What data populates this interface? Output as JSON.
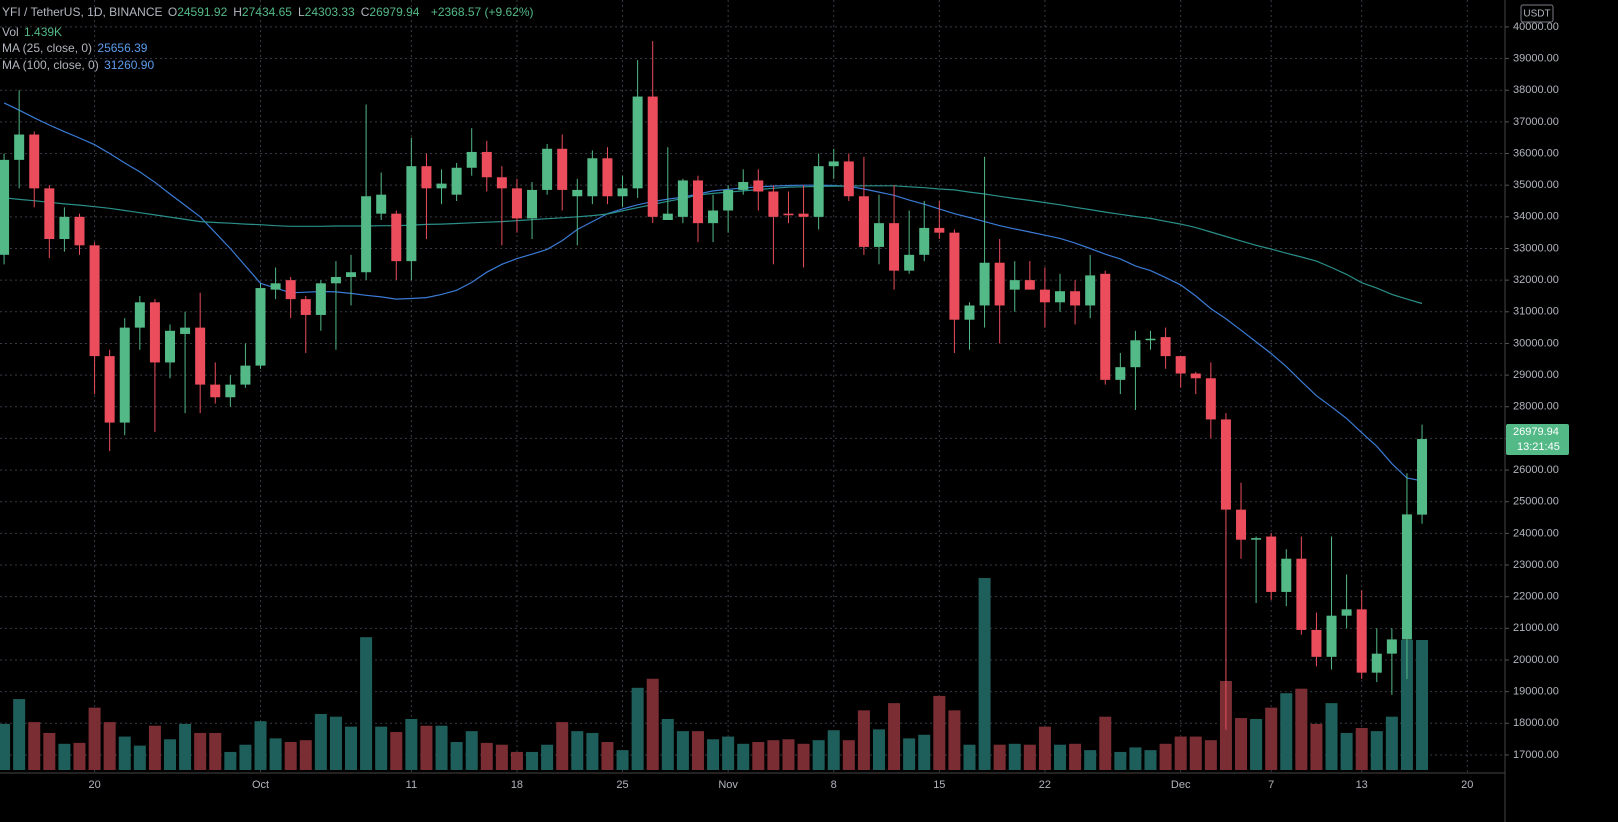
{
  "chart_data": {
    "type": "candlestick",
    "header": {
      "symbol": "YFI / TetherUS, 1D, BINANCE",
      "ohlc": [
        {
          "key": "O",
          "value": "24591.92"
        },
        {
          "key": "H",
          "value": "27434.65"
        },
        {
          "key": "L",
          "value": "24303.33"
        },
        {
          "key": "C",
          "value": "26979.94"
        }
      ],
      "change": "+2368.57 (+9.62%)",
      "vol_label": "Vol",
      "vol_value": "1.439K",
      "ma_values": [
        "25656.39",
        "31260.90"
      ]
    },
    "currency": "USDT",
    "countdown": "13:21:45",
    "up_color": "#53b987",
    "down_color": "#eb4d5c",
    "volume_up_color": "#1f5f5b",
    "volume_down_color": "#7a2e33",
    "grid": true,
    "xlim": [
      -0.27,
      99.5
    ],
    "xticks": [
      {
        "value": 6,
        "label": "20"
      },
      {
        "value": 17,
        "label": "Oct"
      },
      {
        "value": 27,
        "label": "11"
      },
      {
        "value": 34,
        "label": "18"
      },
      {
        "value": 41,
        "label": "25"
      },
      {
        "value": 48,
        "label": "Nov"
      },
      {
        "value": 55,
        "label": "8"
      },
      {
        "value": 62,
        "label": "15"
      },
      {
        "value": 69,
        "label": "22"
      },
      {
        "value": 78,
        "label": "Dec"
      },
      {
        "value": 84,
        "label": "7"
      },
      {
        "value": 90,
        "label": "13"
      },
      {
        "value": 97,
        "label": "20"
      }
    ],
    "ylim": [
      16430,
      40850
    ],
    "yticks": [
      {
        "value": 17000,
        "label": "17000.00"
      },
      {
        "value": 18000,
        "label": "18000.00"
      },
      {
        "value": 19000,
        "label": "19000.00"
      },
      {
        "value": 20000,
        "label": "20000.00"
      },
      {
        "value": 21000,
        "label": "21000.00"
      },
      {
        "value": 22000,
        "label": "22000.00"
      },
      {
        "value": 23000,
        "label": "23000.00"
      },
      {
        "value": 24000,
        "label": "24000.00"
      },
      {
        "value": 25000,
        "label": "25000.00"
      },
      {
        "value": 26000,
        "label": "26000.00"
      },
      {
        "value": 27000,
        "label": "27000.00"
      },
      {
        "value": 28000,
        "label": "28000.00"
      },
      {
        "value": 29000,
        "label": "29000.00"
      },
      {
        "value": 30000,
        "label": "30000.00"
      },
      {
        "value": 31000,
        "label": "31000.00"
      },
      {
        "value": 32000,
        "label": "32000.00"
      },
      {
        "value": 33000,
        "label": "33000.00"
      },
      {
        "value": 34000,
        "label": "34000.00"
      },
      {
        "value": 35000,
        "label": "35000.00"
      },
      {
        "value": 36000,
        "label": "36000.00"
      },
      {
        "value": 37000,
        "label": "37000.00"
      },
      {
        "value": 38000,
        "label": "38000.00"
      },
      {
        "value": 39000,
        "label": "39000.00"
      },
      {
        "value": 40000,
        "label": "40000.00"
      }
    ],
    "open": [
      32800,
      35800,
      36600,
      34900,
      33300,
      34000,
      33100,
      29600,
      27500,
      30500,
      31300,
      29400,
      30300,
      30500,
      28700,
      28300,
      28700,
      29300,
      31700,
      32000,
      31400,
      30900,
      31900,
      32100,
      32250,
      34100,
      34100,
      32600,
      35600,
      34900,
      34700,
      35550,
      36050,
      35250,
      34900,
      33950,
      34850,
      36150,
      34650,
      34650,
      35850,
      34650,
      34900,
      37800,
      33900,
      34000,
      35150,
      33800,
      34200,
      34850,
      35150,
      34800,
      34100,
      34100,
      34000,
      35600,
      35750,
      34650,
      33050,
      33800,
      32300,
      32800,
      33650,
      33500,
      30750,
      31200,
      32550,
      31700,
      32000,
      31700,
      31300,
      31650,
      31200,
      32200,
      28850,
      29250,
      30100,
      30200,
      29600,
      29050,
      28900,
      27600,
      24750,
      23800,
      23900,
      22150,
      23200,
      20950,
      20100,
      21400,
      21600,
      19600,
      20200,
      20650,
      24591.92
    ],
    "high": [
      36000,
      38000,
      36700,
      35000,
      34300,
      34100,
      33200,
      29800,
      30800,
      31500,
      31400,
      30600,
      31000,
      31600,
      29400,
      29000,
      30000,
      31900,
      32400,
      32100,
      31500,
      32000,
      32600,
      32800,
      37550,
      35400,
      34200,
      36500,
      36000,
      35500,
      35700,
      36800,
      36400,
      35600,
      35200,
      35100,
      36300,
      36600,
      35200,
      36100,
      36200,
      35300,
      38950,
      39550,
      36200,
      35200,
      35300,
      34700,
      35000,
      35500,
      35500,
      35000,
      34800,
      35000,
      36000,
      36150,
      36000,
      35900,
      34700,
      35000,
      34200,
      34500,
      34500,
      33600,
      31300,
      35900,
      33300,
      32600,
      32600,
      32400,
      32200,
      32000,
      32800,
      32300,
      29700,
      30400,
      30400,
      30500,
      29600,
      29100,
      29400,
      27800,
      25600,
      23900,
      24000,
      23500,
      23900,
      21500,
      23900,
      22700,
      22200,
      21000,
      21000,
      25900,
      27434.65
    ],
    "low": [
      32500,
      34900,
      34300,
      32700,
      32900,
      32800,
      28400,
      26600,
      27100,
      29800,
      27200,
      28900,
      27800,
      27800,
      28100,
      28000,
      28600,
      29200,
      31400,
      30800,
      29700,
      30400,
      29800,
      31200,
      32000,
      33900,
      32000,
      32000,
      33300,
      34400,
      34500,
      35300,
      34800,
      33100,
      33500,
      33300,
      34700,
      34200,
      33100,
      34400,
      34400,
      34300,
      34600,
      33800,
      33900,
      33800,
      33200,
      33200,
      33500,
      34700,
      34200,
      32500,
      33800,
      32400,
      33600,
      35200,
      34500,
      32800,
      32500,
      31700,
      32200,
      32600,
      33300,
      29700,
      29800,
      30500,
      30000,
      31000,
      31700,
      30500,
      31000,
      30600,
      30800,
      28700,
      28400,
      27900,
      29800,
      29200,
      28600,
      28400,
      27000,
      17800,
      23200,
      21800,
      21900,
      21700,
      20800,
      19800,
      19700,
      21000,
      19400,
      19300,
      18900,
      19400,
      24303.33
    ],
    "close": [
      35800,
      36600,
      34900,
      33300,
      34000,
      33100,
      29600,
      27500,
      30500,
      31300,
      29400,
      30400,
      30500,
      28700,
      28300,
      28700,
      29300,
      31750,
      31900,
      31400,
      30900,
      31900,
      32100,
      32250,
      34650,
      34700,
      32600,
      35600,
      34900,
      35050,
      35550,
      36050,
      35250,
      34900,
      33950,
      34850,
      36150,
      34850,
      34850,
      35850,
      34650,
      34900,
      37800,
      34000,
      34100,
      35150,
      33800,
      34200,
      34850,
      35100,
      34800,
      34000,
      34050,
      34000,
      35600,
      35750,
      34650,
      33050,
      33800,
      32300,
      32800,
      33650,
      33500,
      30750,
      31200,
      32550,
      31200,
      32000,
      31700,
      31300,
      31650,
      31200,
      32150,
      28850,
      29250,
      30100,
      30150,
      29600,
      29050,
      28900,
      27600,
      24750,
      23800,
      23850,
      22150,
      23200,
      20950,
      20100,
      21400,
      21600,
      19600,
      20200,
      20650,
      24600,
      26979.94
    ],
    "volume": [
      510,
      785,
      530,
      410,
      290,
      300,
      690,
      530,
      370,
      270,
      490,
      340,
      510,
      410,
      410,
      200,
      280,
      540,
      350,
      310,
      330,
      620,
      590,
      480,
      1470,
      480,
      420,
      565,
      490,
      490,
      310,
      430,
      300,
      280,
      200,
      200,
      280,
      530,
      430,
      410,
      310,
      220,
      910,
      1010,
      565,
      430,
      430,
      340,
      370,
      290,
      310,
      330,
      340,
      290,
      330,
      440,
      330,
      660,
      450,
      740,
      350,
      390,
      820,
      660,
      280,
      2125,
      280,
      290,
      280,
      480,
      280,
      290,
      220,
      590,
      200,
      250,
      220,
      290,
      370,
      370,
      330,
      985,
      575,
      565,
      690,
      850,
      900,
      510,
      740,
      410,
      465,
      430,
      590,
      1440,
      1439
    ],
    "ma_series": [
      {
        "name": "MA (25, close, 0)",
        "color": "#3a7bd5",
        "values": [
          37600,
          37370,
          37130,
          36900,
          36690,
          36490,
          36280,
          36000,
          35700,
          35420,
          35090,
          34720,
          34360,
          34000,
          33500,
          33000,
          32450,
          31900,
          31750,
          31600,
          31620,
          31640,
          31630,
          31580,
          31520,
          31470,
          31400,
          31420,
          31450,
          31550,
          31680,
          31930,
          32250,
          32500,
          32680,
          32820,
          32970,
          33250,
          33600,
          33850,
          34100,
          34250,
          34380,
          34480,
          34560,
          34620,
          34720,
          34820,
          34870,
          34910,
          34950,
          34970,
          34990,
          35000,
          35000,
          34990,
          34960,
          34880,
          34780,
          34680,
          34530,
          34400,
          34250,
          34100,
          33980,
          33850,
          33720,
          33620,
          33520,
          33420,
          33320,
          33170,
          33000,
          32820,
          32670,
          32450,
          32300,
          32080,
          31850,
          31500,
          31100,
          30780,
          30420,
          30050,
          29680,
          29270,
          28800,
          28350,
          28000,
          27630,
          27180,
          26750,
          26200,
          25750,
          25656.39
        ]
      },
      {
        "name": "MA (100, close, 0)",
        "color": "#2a8f8a",
        "values": [
          34600,
          34550,
          34510,
          34460,
          34410,
          34370,
          34320,
          34270,
          34200,
          34130,
          34060,
          33990,
          33920,
          33850,
          33820,
          33800,
          33770,
          33750,
          33720,
          33700,
          33700,
          33700,
          33710,
          33710,
          33710,
          33720,
          33720,
          33740,
          33760,
          33770,
          33790,
          33810,
          33830,
          33850,
          33880,
          33910,
          33940,
          33970,
          34000,
          34040,
          34090,
          34190,
          34290,
          34390,
          34490,
          34580,
          34690,
          34740,
          34780,
          34820,
          34860,
          34900,
          34940,
          34950,
          34960,
          34970,
          34970,
          34980,
          34980,
          34980,
          34950,
          34920,
          34880,
          34850,
          34780,
          34720,
          34650,
          34580,
          34520,
          34450,
          34380,
          34300,
          34230,
          34150,
          34080,
          34010,
          33950,
          33860,
          33770,
          33660,
          33520,
          33380,
          33240,
          33100,
          32980,
          32850,
          32730,
          32600,
          32400,
          32180,
          31920,
          31750,
          31550,
          31400,
          31260.9
        ]
      }
    ]
  }
}
